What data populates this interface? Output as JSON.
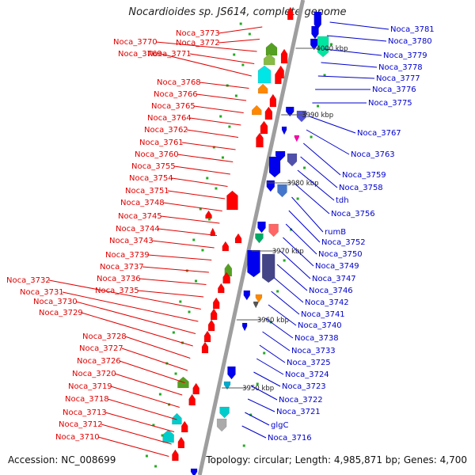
{
  "title": "Nocardioides sp. JS614, complete genome",
  "footer": {
    "accession": "Accession: NC_008699",
    "summary": "Topology: circular; Length: 4,985,871 bp; Genes: 4,700"
  },
  "colors": {
    "left_label": "#e00000",
    "right_label": "#0000cc",
    "reverse_gene": "#ff0000",
    "forward_gene": "#0000ee",
    "backbone": "#9e9e9e",
    "marker": "#22aa22"
  },
  "ticks": [
    {
      "label": "4000 kbp"
    },
    {
      "label": "3990 kbp"
    },
    {
      "label": "3980 kbp"
    },
    {
      "label": "3970 kbp"
    },
    {
      "label": "3960 kbp"
    },
    {
      "label": "3950 kbp"
    }
  ],
  "left_labels": [
    "Noca_3773",
    "Noca_3772",
    "Noca_3770",
    "Noca_3771",
    "Noca_3769",
    "Noca_3768",
    "Noca_3766",
    "Noca_3765",
    "Noca_3764",
    "Noca_3762",
    "Noca_3761",
    "Noca_3760",
    "Noca_3755",
    "Noca_3754",
    "Noca_3751",
    "Noca_3748",
    "Noca_3745",
    "Noca_3744",
    "Noca_3743",
    "Noca_3739",
    "Noca_3737",
    "Noca_3736",
    "Noca_3735",
    "Noca_3732",
    "Noca_3731",
    "Noca_3730",
    "Noca_3729",
    "Noca_3728",
    "Noca_3727",
    "Noca_3726",
    "Noca_3720",
    "Noca_3719",
    "Noca_3718",
    "Noca_3713",
    "Noca_3712",
    "Noca_3710"
  ],
  "right_labels": [
    "Noca_3781",
    "Noca_3780",
    "Noca_3779",
    "Noca_3778",
    "Noca_3777",
    "Noca_3776",
    "Noca_3775",
    "Noca_3767",
    "Noca_3763",
    "Noca_3759",
    "Noca_3758",
    "tdh",
    "Noca_3756",
    "rumB",
    "Noca_3752",
    "Noca_3750",
    "Noca_3749",
    "Noca_3747",
    "Noca_3746",
    "Noca_3742",
    "Noca_3741",
    "Noca_3740",
    "Noca_3738",
    "Noca_3733",
    "Noca_3725",
    "Noca_3724",
    "Noca_3723",
    "Noca_3722",
    "Noca_3721",
    "glgC",
    "Noca_3716"
  ]
}
